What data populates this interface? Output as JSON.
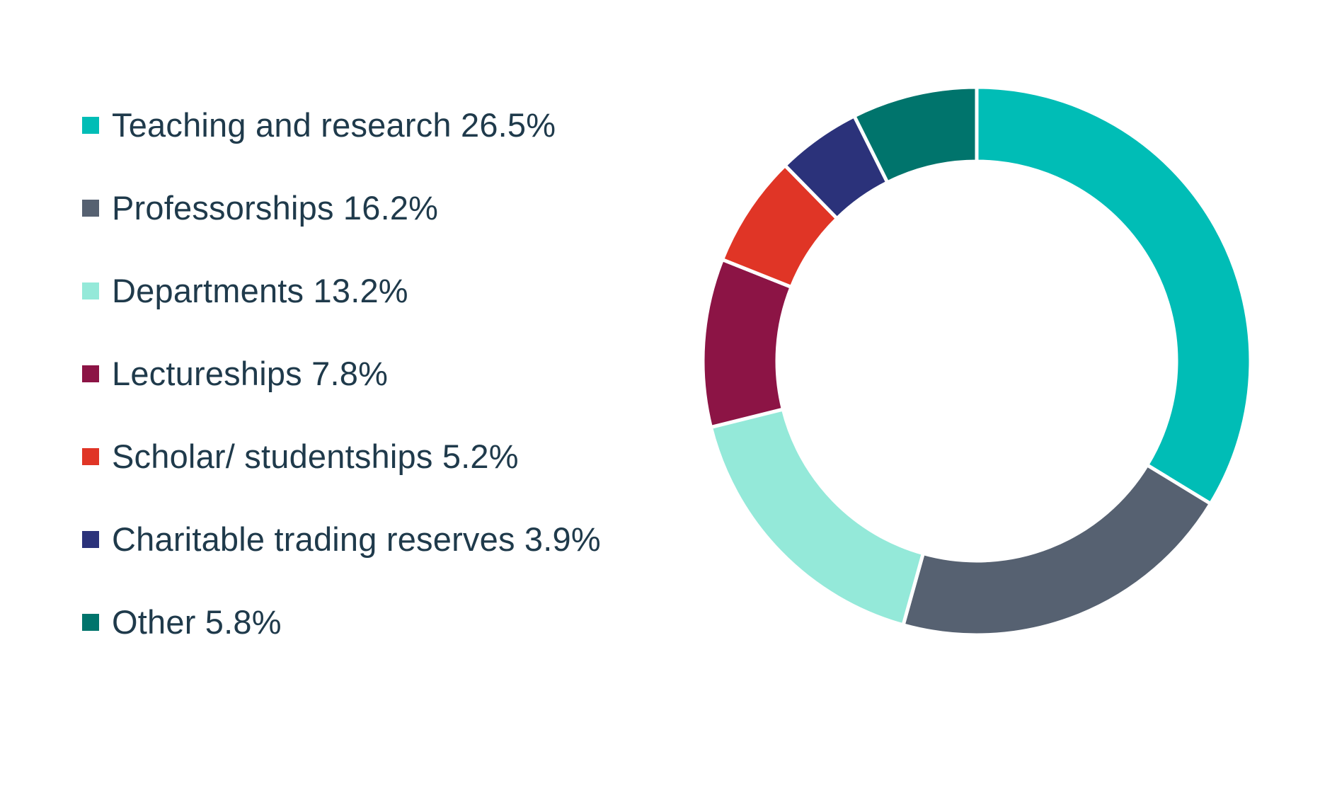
{
  "chart_data": {
    "type": "pie",
    "variant": "donut",
    "title": "",
    "legend_position": "left",
    "slices": [
      {
        "label": "Teaching and research 26.5%",
        "category": "Teaching and research",
        "value": 26.5,
        "color": "#00bdb6"
      },
      {
        "label": "Professorships 16.2%",
        "category": "Professorships",
        "value": 16.2,
        "color": "#566171"
      },
      {
        "label": "Departments 13.2%",
        "category": "Departments",
        "value": 13.2,
        "color": "#94e9d9"
      },
      {
        "label": "Lectureships 7.8%",
        "category": "Lectureships",
        "value": 7.8,
        "color": "#8c1445"
      },
      {
        "label": "Scholar/ studentships 5.2%",
        "category": "Scholar/ studentships",
        "value": 5.2,
        "color": "#e03526"
      },
      {
        "label": "Charitable trading reserves 3.9%",
        "category": "Charitable trading reserves",
        "value": 3.9,
        "color": "#2b327a"
      },
      {
        "label": "Other 5.8%",
        "category": "Other",
        "value": 5.8,
        "color": "#00746c"
      }
    ]
  }
}
